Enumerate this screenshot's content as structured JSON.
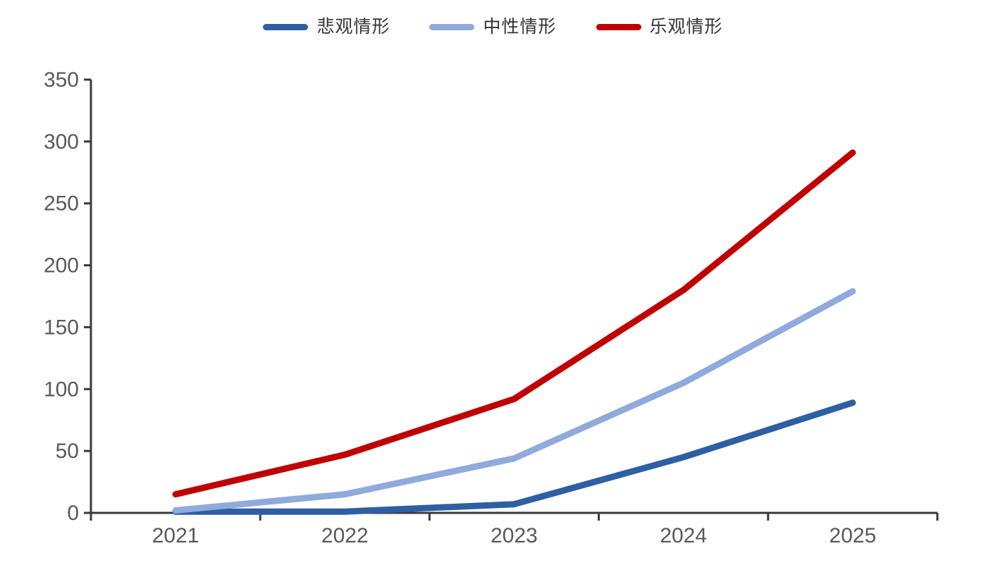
{
  "chart_data": {
    "type": "line",
    "title": "",
    "categories": [
      "2021",
      "2022",
      "2023",
      "2024",
      "2025"
    ],
    "series": [
      {
        "name": "悲观情形",
        "color": "#2E5FA3",
        "values": [
          1,
          1,
          7,
          45,
          89
        ]
      },
      {
        "name": "中性情形",
        "color": "#8FAADC",
        "values": [
          2,
          15,
          44,
          105,
          179
        ]
      },
      {
        "name": "乐观情形",
        "color": "#C00000",
        "values": [
          15,
          47,
          92,
          180,
          291
        ]
      }
    ],
    "ylim": [
      0,
      350
    ],
    "y_ticks": [
      0,
      50,
      100,
      150,
      200,
      250,
      300,
      350
    ],
    "grid": false,
    "legend_position": "top",
    "axis_line_color": "#3a3a3a",
    "tick_label_color": "#595959"
  }
}
